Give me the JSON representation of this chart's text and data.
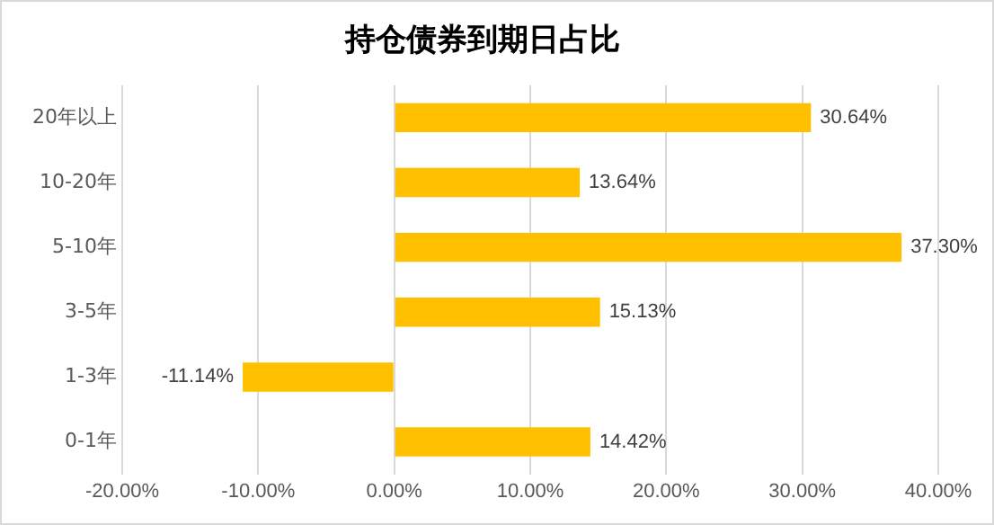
{
  "chart_data": {
    "type": "bar",
    "orientation": "horizontal",
    "title": "持仓债券到期日占比",
    "categories": [
      "20年以上",
      "10-20年",
      "5-10年",
      "3-5年",
      "1-3年",
      "0-1年"
    ],
    "values": [
      30.64,
      13.64,
      37.3,
      15.13,
      -11.14,
      14.42
    ],
    "value_labels": [
      "30.64%",
      "13.64%",
      "37.30%",
      "15.13%",
      "-11.14%",
      "14.42%"
    ],
    "color": "#ffc000",
    "xlim": [
      -20,
      40
    ],
    "xticks": [
      {
        "value": -20,
        "label": "-20.00%"
      },
      {
        "value": -10,
        "label": "-10.00%"
      },
      {
        "value": 0,
        "label": "0.00%"
      },
      {
        "value": 10,
        "label": "10.00%"
      },
      {
        "value": 20,
        "label": "20.00%"
      },
      {
        "value": 30,
        "label": "30.00%"
      },
      {
        "value": 40,
        "label": "40.00%"
      }
    ],
    "grid": "x",
    "legend": false
  }
}
